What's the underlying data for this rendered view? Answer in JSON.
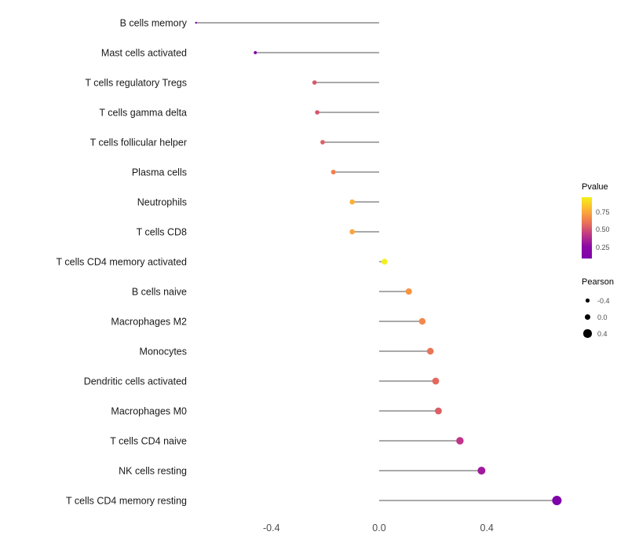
{
  "chart_data": {
    "type": "scatter",
    "subtype": "lollipop-horizontal",
    "title": "",
    "xlabel": "",
    "ylabel": "",
    "xlim": [
      -0.75,
      0.72
    ],
    "grid": false,
    "x_ticks": [
      {
        "value": -0.4,
        "label": "-0.4"
      },
      {
        "value": 0.0,
        "label": "0.0"
      },
      {
        "value": 0.4,
        "label": "0.4"
      }
    ],
    "points": [
      {
        "label": "B cells memory",
        "pearson": -0.68,
        "pvalue": 0.02,
        "color": "#6a00a8"
      },
      {
        "label": "Mast cells activated",
        "pearson": -0.46,
        "pvalue": 0.08,
        "color": "#8606a6"
      },
      {
        "label": "T cells regulatory Tregs",
        "pearson": -0.24,
        "pvalue": 0.38,
        "color": "#d8576b"
      },
      {
        "label": "T cells gamma delta",
        "pearson": -0.23,
        "pvalue": 0.37,
        "color": "#d6536d"
      },
      {
        "label": "T cells follicular helper",
        "pearson": -0.21,
        "pvalue": 0.4,
        "color": "#de6065"
      },
      {
        "label": "Plasma cells",
        "pearson": -0.17,
        "pvalue": 0.52,
        "color": "#f07f4f"
      },
      {
        "label": "Neutrophils",
        "pearson": -0.1,
        "pvalue": 0.68,
        "color": "#fbb134"
      },
      {
        "label": "T cells CD8",
        "pearson": -0.1,
        "pvalue": 0.66,
        "color": "#fba33a"
      },
      {
        "label": "T cells CD4 memory activated",
        "pearson": 0.02,
        "pvalue": 0.92,
        "color": "#f2ef1f"
      },
      {
        "label": "B cells naive",
        "pearson": 0.11,
        "pvalue": 0.6,
        "color": "#f8933f"
      },
      {
        "label": "Macrophages M2",
        "pearson": 0.16,
        "pvalue": 0.55,
        "color": "#f4874e"
      },
      {
        "label": "Monocytes",
        "pearson": 0.19,
        "pvalue": 0.47,
        "color": "#ea7457"
      },
      {
        "label": "Dendritic cells activated",
        "pearson": 0.21,
        "pvalue": 0.42,
        "color": "#e3685e"
      },
      {
        "label": "Macrophages M0",
        "pearson": 0.22,
        "pvalue": 0.38,
        "color": "#dc5e67"
      },
      {
        "label": "T cells CD4 naive",
        "pearson": 0.3,
        "pvalue": 0.24,
        "color": "#c0358a"
      },
      {
        "label": "NK cells resting",
        "pearson": 0.38,
        "pvalue": 0.12,
        "color": "#a01a9c"
      },
      {
        "label": "T cells CD4 memory resting",
        "pearson": 0.66,
        "pvalue": 0.01,
        "color": "#7e03a8"
      }
    ],
    "legend": {
      "position": "right",
      "pvalue": {
        "title": "Pvalue",
        "ticks": [
          "0.75",
          "0.50",
          "0.25"
        ],
        "gradient": [
          "#f4f018",
          "#fcb434",
          "#ec7754",
          "#c13b82",
          "#8c0aa5",
          "#7e03a8"
        ]
      },
      "pearson": {
        "title": "Pearson",
        "sizes": [
          {
            "value": -0.4,
            "label": "-0.4"
          },
          {
            "value": 0.0,
            "label": "0.0"
          },
          {
            "value": 0.4,
            "label": "0.4"
          }
        ]
      }
    }
  }
}
